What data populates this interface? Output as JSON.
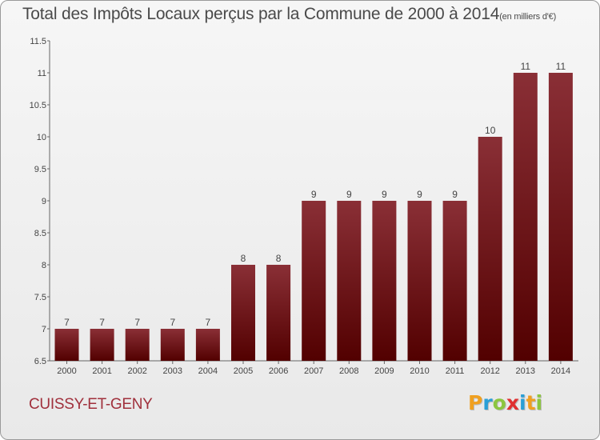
{
  "title": "Total des Impôts Locaux perçus par la Commune de 2000 à 2014",
  "title_unit": "(en milliers d'€)",
  "commune": "CUISSY-ET-GENY",
  "brand": {
    "letters": [
      "P",
      "r",
      "o",
      "x",
      "i",
      "t",
      "i"
    ],
    "colors": [
      "#f0a020",
      "#2a9fd6",
      "#8cc63f",
      "#e03030",
      "#2a9fd6",
      "#f0a020",
      "#8cc63f"
    ]
  },
  "chart_data": {
    "type": "bar",
    "title": "Total des Impôts Locaux perçus par la Commune de 2000 à 2014",
    "xlabel": "",
    "ylabel": "",
    "categories": [
      "2000",
      "2001",
      "2002",
      "2003",
      "2004",
      "2005",
      "2006",
      "2007",
      "2008",
      "2009",
      "2010",
      "2011",
      "2012",
      "2013",
      "2014"
    ],
    "values": [
      7,
      7,
      7,
      7,
      7,
      8,
      8,
      9,
      9,
      9,
      9,
      9,
      10,
      11,
      11
    ],
    "ylim": [
      6.5,
      11.5
    ],
    "yticks": [
      6.5,
      7,
      7.5,
      8,
      8.5,
      9,
      9.5,
      10,
      10.5,
      11,
      11.5
    ],
    "ytick_labels": [
      "6.5",
      "7",
      "7.5",
      "8",
      "8.5",
      "9",
      "9.5",
      "10",
      "10.5",
      "11",
      "11.5"
    ],
    "grid": false,
    "bar_color_top": "#8a2f36",
    "bar_color_bottom": "#520000"
  }
}
